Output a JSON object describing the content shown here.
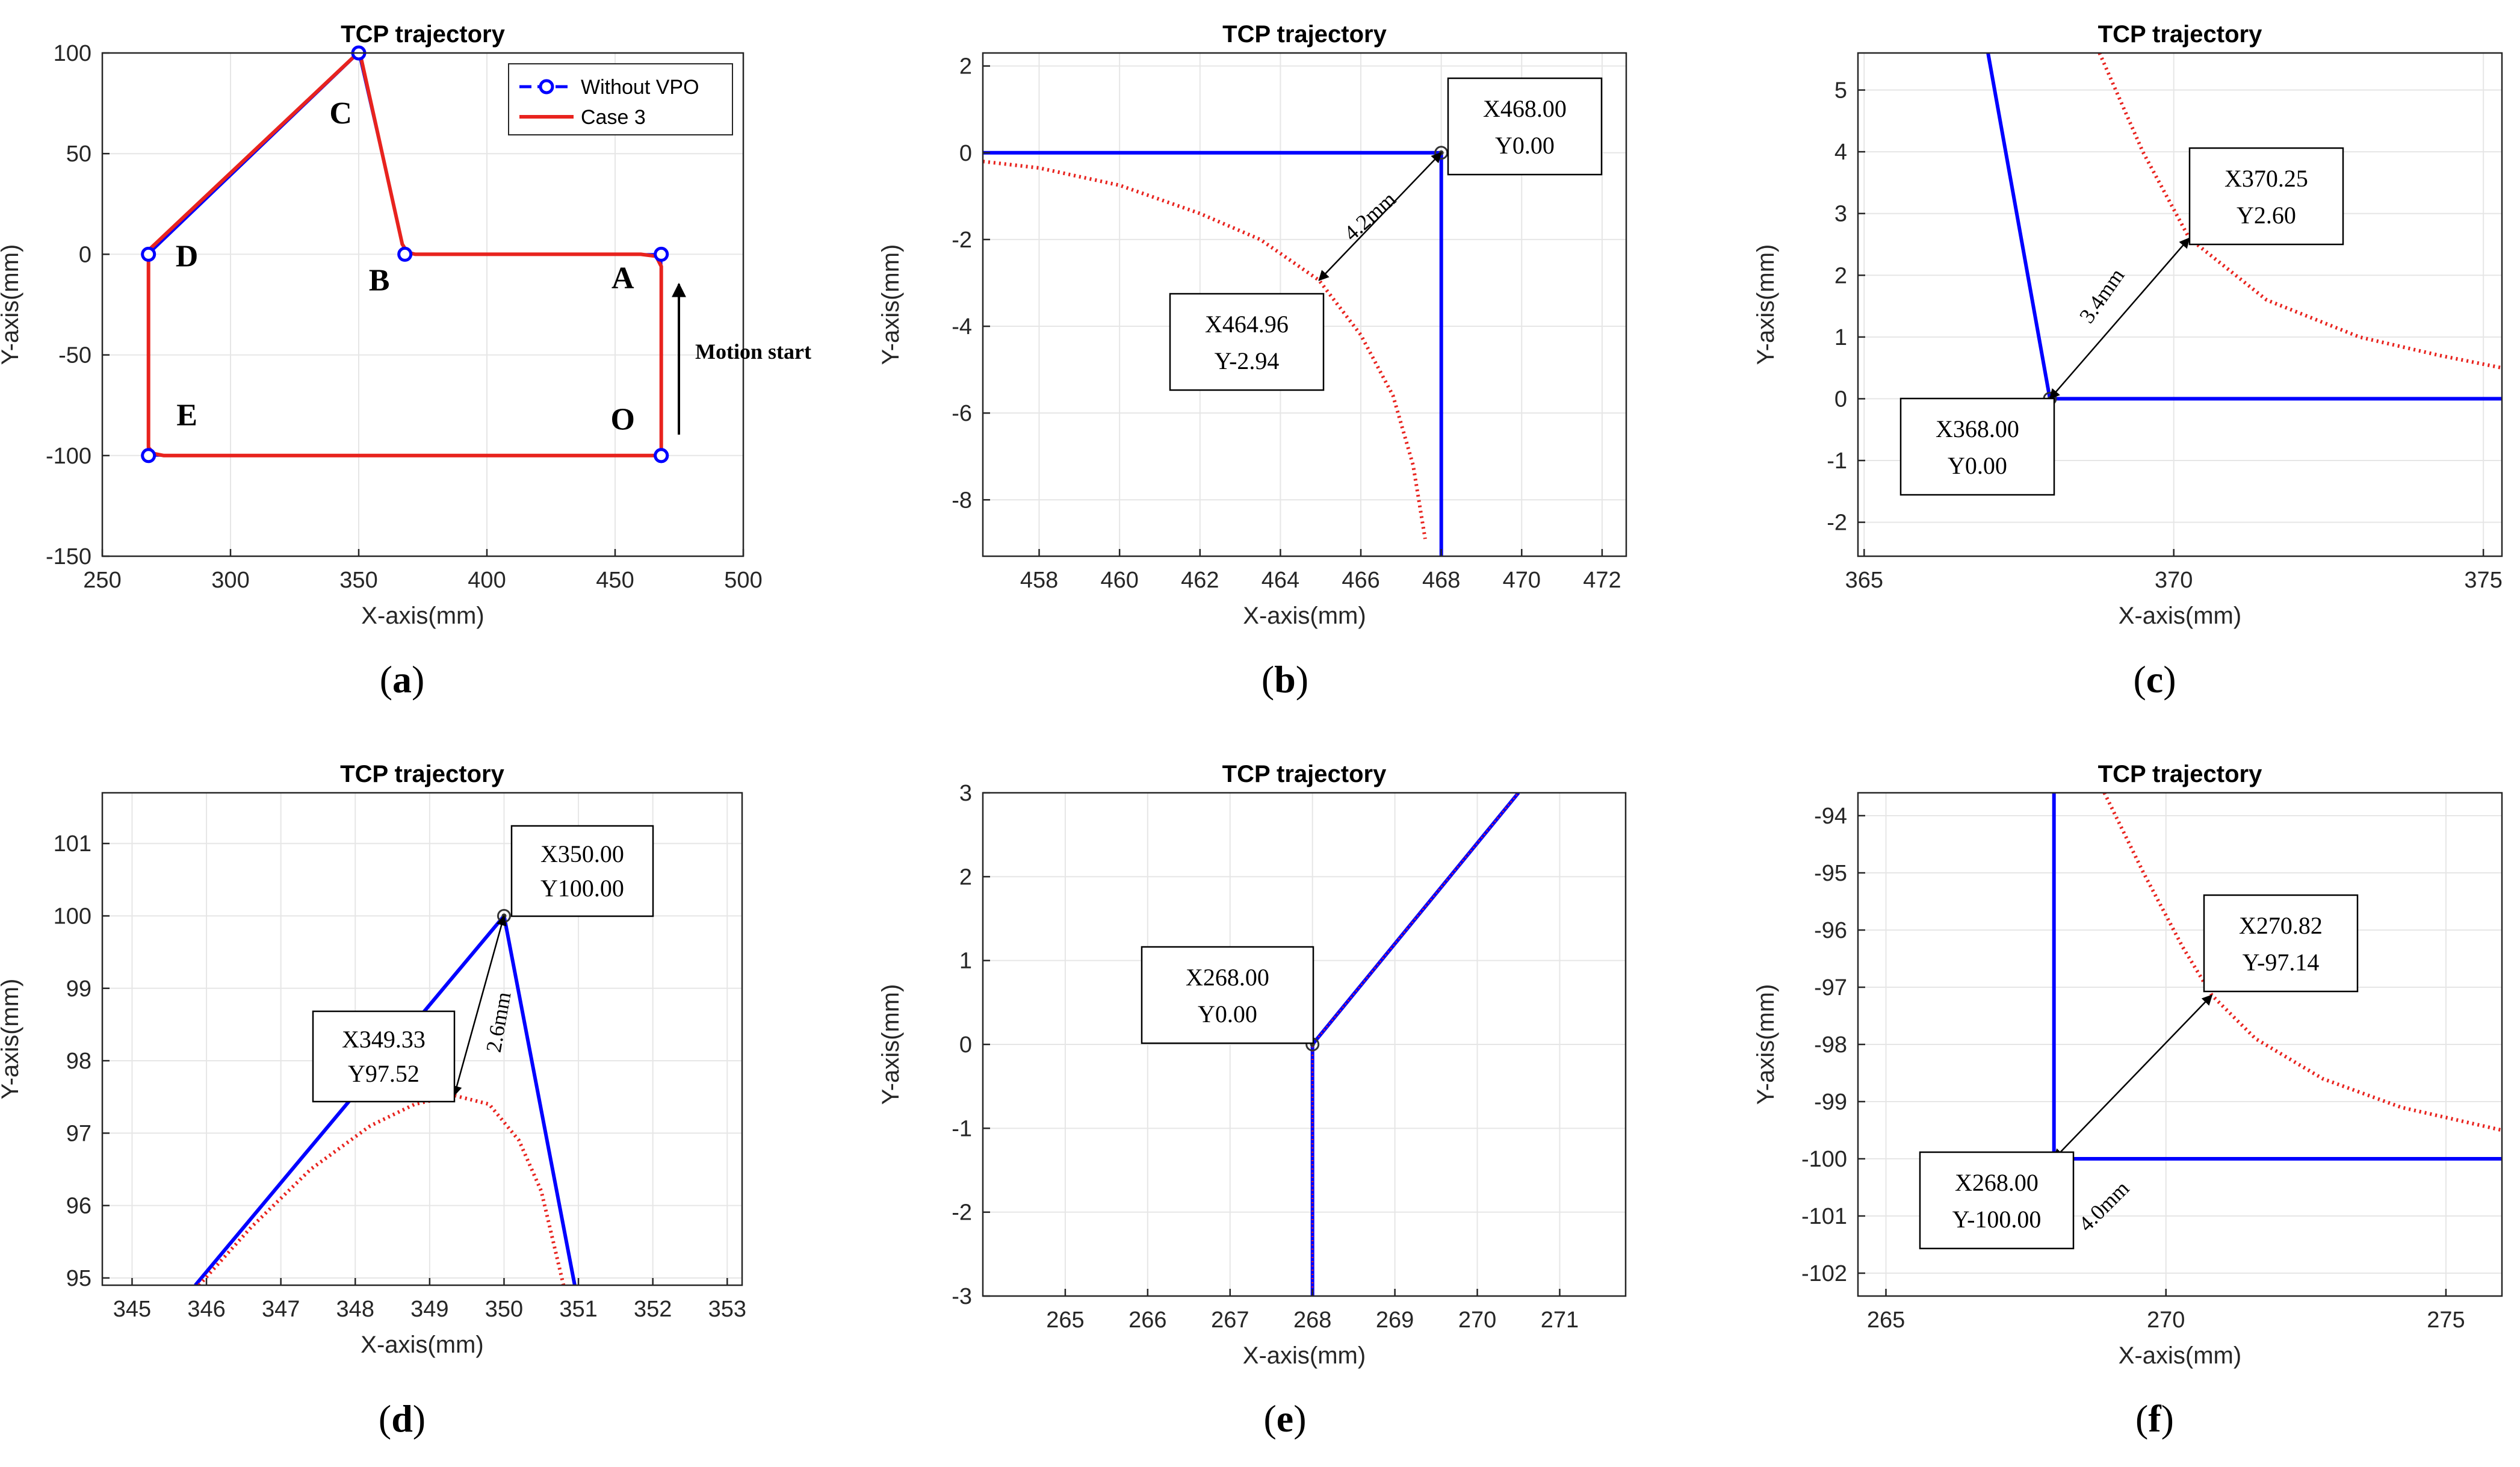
{
  "series_style": {
    "blue": "#0000ff",
    "red": "#e8231e",
    "grid": "#e6e6e6",
    "axis": "#262626"
  },
  "chart_data": [
    {
      "id": "a",
      "type": "line",
      "title": "TCP trajectory",
      "xlabel": "X-axis(mm)",
      "ylabel": "Y-axis(mm)",
      "xlim": [
        250,
        500
      ],
      "ylim": [
        -150,
        100
      ],
      "xticks": [
        250,
        300,
        350,
        400,
        450,
        500
      ],
      "yticks": [
        -150,
        -100,
        -50,
        0,
        50,
        100
      ],
      "caption": "(a)",
      "legend": {
        "position": "top-right",
        "entries": [
          "Without VPO",
          "Case 3"
        ]
      },
      "series": [
        {
          "name": "Without VPO",
          "color": "#0000ff",
          "style": "dashed",
          "marker": "circle",
          "x": [
            468,
            468,
            368,
            350,
            268,
            268,
            468
          ],
          "y": [
            -100,
            0,
            0,
            100,
            0,
            -100,
            -100
          ]
        },
        {
          "name": "Case 3",
          "color": "#e8231e",
          "style": "solid",
          "x": [
            468,
            468,
            466,
            460,
            372,
            369,
            367,
            351,
            348,
            268,
            268,
            270,
            274,
            465,
            468
          ],
          "y": [
            -100,
            -6,
            -1,
            0,
            0,
            1,
            5,
            97,
            98,
            2,
            -96,
            -99,
            -100,
            -100,
            -100
          ]
        }
      ],
      "point_labels": [
        {
          "text": "O",
          "x": 453,
          "y": -87
        },
        {
          "text": "A",
          "x": 453,
          "y": -17
        },
        {
          "text": "B",
          "x": 358,
          "y": -18
        },
        {
          "text": "C",
          "x": 343,
          "y": 65
        },
        {
          "text": "D",
          "x": 283,
          "y": -6
        },
        {
          "text": "E",
          "x": 283,
          "y": -85
        }
      ],
      "annotation": {
        "text": "Motion start"
      }
    },
    {
      "id": "b",
      "type": "line",
      "title": "TCP trajectory",
      "xlabel": "X-axis(mm)",
      "ylabel": "Y-axis(mm)",
      "xlim": [
        456.6,
        472.6
      ],
      "ylim": [
        -9.3,
        2.3
      ],
      "xticks": [
        458,
        460,
        462,
        464,
        466,
        468,
        470,
        472
      ],
      "yticks": [
        -8,
        -6,
        -4,
        -2,
        0,
        2
      ],
      "caption": "(b)",
      "series": [
        {
          "name": "Without VPO",
          "color": "#0000ff",
          "style": "solid",
          "x": [
            456.6,
            468,
            468
          ],
          "y": [
            0,
            0,
            -9.3
          ]
        },
        {
          "name": "Case 3",
          "color": "#e8231e",
          "style": "dotted",
          "x": [
            456.6,
            458,
            460,
            462,
            463.5,
            464.96,
            466,
            466.8,
            467.3,
            467.6
          ],
          "y": [
            -0.2,
            -0.35,
            -0.75,
            -1.4,
            -2.0,
            -2.94,
            -4.2,
            -5.6,
            -7.2,
            -8.9
          ]
        }
      ],
      "markers": [
        {
          "x": 468,
          "y": 0
        }
      ],
      "callouts": [
        {
          "line1": "X468.00",
          "line2": "Y0.00",
          "point": [
            468,
            0
          ]
        },
        {
          "line1": "X464.96",
          "line2": "Y-2.94",
          "point": [
            464.96,
            -2.94
          ]
        }
      ],
      "dimension": {
        "text": "4.2mm",
        "from": [
          468,
          0
        ],
        "to": [
          464.96,
          -2.94
        ]
      }
    },
    {
      "id": "c",
      "type": "line",
      "title": "TCP trajectory",
      "xlabel": "X-axis(mm)",
      "ylabel": "Y-axis(mm)",
      "xlim": [
        364.9,
        375.3
      ],
      "ylim": [
        -2.55,
        5.6
      ],
      "xticks": [
        365,
        370,
        375
      ],
      "yticks": [
        -2,
        -1,
        0,
        1,
        2,
        3,
        4,
        5
      ],
      "caption": "(c)",
      "series": [
        {
          "name": "Without VPO",
          "color": "#0000ff",
          "style": "solid",
          "x": [
            367.0,
            368,
            375.3
          ],
          "y": [
            5.6,
            0,
            0
          ]
        },
        {
          "name": "Case 3",
          "color": "#e8231e",
          "style": "dotted",
          "x": [
            368.8,
            369.5,
            370.25,
            371.5,
            373,
            374.3,
            375.3
          ],
          "y": [
            5.6,
            4.0,
            2.6,
            1.6,
            1.0,
            0.7,
            0.5
          ]
        }
      ],
      "markers": [
        {
          "x": 368,
          "y": 0
        }
      ],
      "callouts": [
        {
          "line1": "X370.25",
          "line2": "Y2.60",
          "point": [
            370.25,
            2.6
          ]
        },
        {
          "line1": "X368.00",
          "line2": "Y0.00",
          "point": [
            368,
            0
          ]
        }
      ],
      "dimension": {
        "text": "3.4mm",
        "from": [
          368,
          0
        ],
        "to": [
          370.25,
          2.6
        ]
      }
    },
    {
      "id": "d",
      "type": "line",
      "title": "TCP trajectory",
      "xlabel": "X-axis(mm)",
      "ylabel": "Y-axis(mm)",
      "xlim": [
        344.6,
        353.2
      ],
      "ylim": [
        94.9,
        101.7
      ],
      "xticks": [
        345,
        346,
        347,
        348,
        349,
        350,
        351,
        352,
        353
      ],
      "yticks": [
        95,
        96,
        97,
        98,
        99,
        100,
        101
      ],
      "caption": "(d)",
      "series": [
        {
          "name": "Without VPO",
          "color": "#0000ff",
          "style": "solid",
          "x": [
            345.85,
            350,
            350.95
          ],
          "y": [
            94.9,
            100,
            94.9
          ]
        },
        {
          "name": "Case 3",
          "color": "#e8231e",
          "style": "dotted",
          "x": [
            345.9,
            346.6,
            347.4,
            348.2,
            348.8,
            349.33,
            349.8,
            350.2,
            350.5,
            350.8
          ],
          "y": [
            94.9,
            95.7,
            96.5,
            97.1,
            97.4,
            97.52,
            97.4,
            96.9,
            96.2,
            94.9
          ]
        }
      ],
      "markers": [
        {
          "x": 350,
          "y": 100
        }
      ],
      "callouts": [
        {
          "line1": "X350.00",
          "line2": "Y100.00",
          "point": [
            350,
            100
          ]
        },
        {
          "line1": "X349.33",
          "line2": "Y97.52",
          "point": [
            349.33,
            97.52
          ]
        }
      ],
      "dimension": {
        "text": "2.6mm",
        "from": [
          350,
          100
        ],
        "to": [
          349.33,
          97.52
        ]
      }
    },
    {
      "id": "e",
      "type": "line",
      "title": "TCP trajectory",
      "xlabel": "X-axis(mm)",
      "ylabel": "Y-axis(mm)",
      "xlim": [
        264,
        271.8
      ],
      "ylim": [
        -3,
        3
      ],
      "xticks": [
        265,
        266,
        267,
        268,
        269,
        270,
        271
      ],
      "yticks": [
        -3,
        -2,
        -1,
        0,
        1,
        2,
        3
      ],
      "caption": "(e)",
      "series": [
        {
          "name": "Without VPO",
          "color": "#0000ff",
          "style": "solid",
          "x": [
            268,
            268,
            270.5
          ],
          "y": [
            -3,
            0,
            3
          ]
        },
        {
          "name": "Case 3",
          "color": "#e8231e",
          "style": "dotted",
          "x": [
            268,
            268,
            270.5
          ],
          "y": [
            -3,
            0,
            3
          ]
        }
      ],
      "markers": [
        {
          "x": 268,
          "y": 0
        }
      ],
      "callouts": [
        {
          "line1": "X268.00",
          "line2": "Y0.00",
          "point": [
            268,
            0
          ]
        }
      ]
    },
    {
      "id": "f",
      "type": "line",
      "title": "TCP trajectory",
      "xlabel": "X-axis(mm)",
      "ylabel": "Y-axis(mm)",
      "xlim": [
        264.5,
        276
      ],
      "ylim": [
        -102.4,
        -93.6
      ],
      "xticks": [
        265,
        270,
        275
      ],
      "yticks": [
        -102,
        -101,
        -100,
        -99,
        -98,
        -97,
        -96,
        -95,
        -94
      ],
      "caption": "(f)",
      "series": [
        {
          "name": "Without VPO",
          "color": "#0000ff",
          "style": "solid",
          "x": [
            268,
            268,
            276
          ],
          "y": [
            -93.6,
            -100,
            -100
          ]
        },
        {
          "name": "Case 3",
          "color": "#e8231e",
          "style": "dotted",
          "x": [
            268.9,
            269.6,
            270.3,
            270.82,
            271.6,
            272.8,
            274.2,
            276
          ],
          "y": [
            -93.6,
            -95.0,
            -96.3,
            -97.14,
            -97.9,
            -98.6,
            -99.1,
            -99.5
          ]
        }
      ],
      "markers": [
        {
          "x": 268,
          "y": -100
        }
      ],
      "callouts": [
        {
          "line1": "X270.82",
          "line2": "Y-97.14",
          "point": [
            270.82,
            -97.14
          ]
        },
        {
          "line1": "X268.00",
          "line2": "Y-100.00",
          "point": [
            268,
            -100
          ]
        }
      ],
      "dimension": {
        "text": "4.0mm",
        "from": [
          268,
          -100
        ],
        "to": [
          270.82,
          -97.14
        ]
      }
    }
  ]
}
